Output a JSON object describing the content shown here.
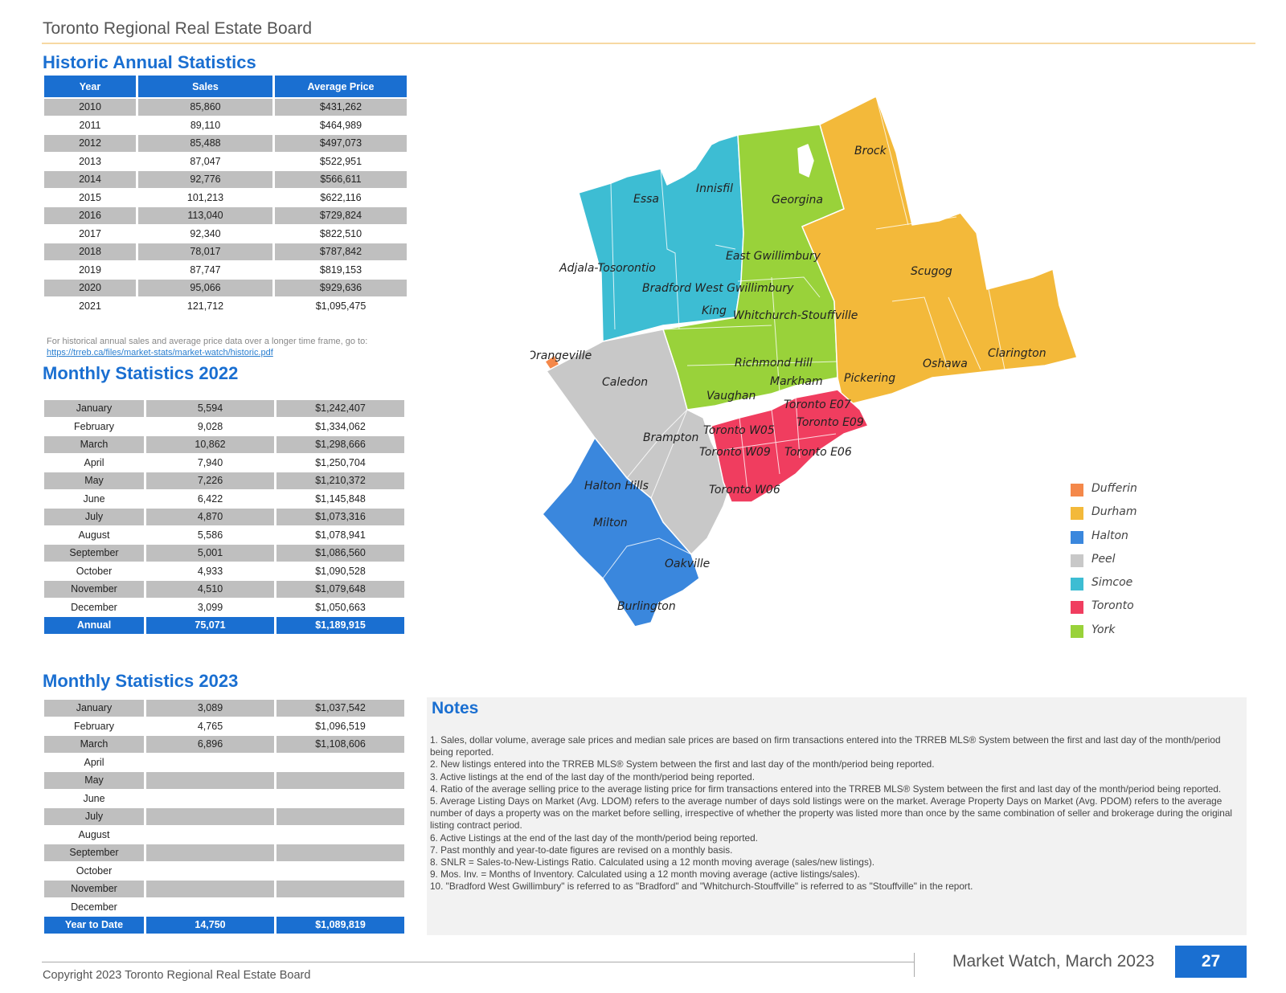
{
  "header": {
    "org_title": "Toronto Regional Real Estate Board"
  },
  "historic": {
    "title": "Historic Annual Statistics",
    "columns": [
      "Year",
      "Sales",
      "Average Price"
    ],
    "rows": [
      [
        "2010",
        "85,860",
        "$431,262"
      ],
      [
        "2011",
        "89,110",
        "$464,989"
      ],
      [
        "2012",
        "85,488",
        "$497,073"
      ],
      [
        "2013",
        "87,047",
        "$522,951"
      ],
      [
        "2014",
        "92,776",
        "$566,611"
      ],
      [
        "2015",
        "101,213",
        "$622,116"
      ],
      [
        "2016",
        "113,040",
        "$729,824"
      ],
      [
        "2017",
        "92,340",
        "$822,510"
      ],
      [
        "2018",
        "78,017",
        "$787,842"
      ],
      [
        "2019",
        "87,747",
        "$819,153"
      ],
      [
        "2020",
        "95,066",
        "$929,636"
      ],
      [
        "2021",
        "121,712",
        "$1,095,475"
      ]
    ],
    "note": "For historical annual sales and average price data over a longer time frame, go to:",
    "link": "https://trreb.ca/files/market-stats/market-watch/historic.pdf"
  },
  "monthly_2022": {
    "title": "Monthly Statistics 2022",
    "rows": [
      [
        "January",
        "5,594",
        "$1,242,407"
      ],
      [
        "February",
        "9,028",
        "$1,334,062"
      ],
      [
        "March",
        "10,862",
        "$1,298,666"
      ],
      [
        "April",
        "7,940",
        "$1,250,704"
      ],
      [
        "May",
        "7,226",
        "$1,210,372"
      ],
      [
        "June",
        "6,422",
        "$1,145,848"
      ],
      [
        "July",
        "4,870",
        "$1,073,316"
      ],
      [
        "August",
        "5,586",
        "$1,078,941"
      ],
      [
        "September",
        "5,001",
        "$1,086,560"
      ],
      [
        "October",
        "4,933",
        "$1,090,528"
      ],
      [
        "November",
        "4,510",
        "$1,079,648"
      ],
      [
        "December",
        "3,099",
        "$1,050,663"
      ]
    ],
    "total": [
      "Annual",
      "75,071",
      "$1,189,915"
    ]
  },
  "monthly_2023": {
    "title": "Monthly Statistics 2023",
    "rows": [
      [
        "January",
        "3,089",
        "$1,037,542"
      ],
      [
        "February",
        "4,765",
        "$1,096,519"
      ],
      [
        "March",
        "6,896",
        "$1,108,606"
      ],
      [
        "April",
        "",
        ""
      ],
      [
        "May",
        "",
        ""
      ],
      [
        "June",
        "",
        ""
      ],
      [
        "July",
        "",
        ""
      ],
      [
        "August",
        "",
        ""
      ],
      [
        "September",
        "",
        ""
      ],
      [
        "October",
        "",
        ""
      ],
      [
        "November",
        "",
        ""
      ],
      [
        "December",
        "",
        ""
      ]
    ],
    "total": [
      "Year to Date",
      "14,750",
      "$1,089,819"
    ]
  },
  "map": {
    "labels": {
      "brock": "Brock",
      "innisfil": "Innisfil",
      "essa": "Essa",
      "georgina": "Georgina",
      "east_gwillimbury": "East Gwillimbury",
      "adjala": "Adjala-Tosorontio",
      "scugog": "Scugog",
      "bradford": "Bradford West Gwillimbury",
      "king": "King",
      "whitchurch": "Whitchurch-Stouffville",
      "orangeville": "Orangeville",
      "clarington": "Clarington",
      "richmond_hill": "Richmond Hill",
      "oshawa": "Oshawa",
      "caledon": "Caledon",
      "markham": "Markham",
      "pickering": "Pickering",
      "vaughan": "Vaughan",
      "toronto_e07": "Toronto E07",
      "toronto_e09": "Toronto E09",
      "brampton": "Brampton",
      "toronto_w05": "Toronto W05",
      "toronto_w09": "Toronto W09",
      "toronto_e06": "Toronto E06",
      "halton_hills": "Halton Hills",
      "toronto_w06": "Toronto W06",
      "milton": "Milton",
      "oakville": "Oakville",
      "burlington": "Burlington"
    },
    "region_colors": {
      "dufferin": "#f4884a",
      "durham": "#f3b93a",
      "halton": "#3a87dd",
      "peel": "#c8c8c8",
      "simcoe": "#3dbdd3",
      "toronto": "#f03d5f",
      "york": "#99d23a"
    },
    "legend": [
      {
        "label": "Dufferin",
        "color": "#f4884a"
      },
      {
        "label": "Durham",
        "color": "#f3b93a"
      },
      {
        "label": "Halton",
        "color": "#3a87dd"
      },
      {
        "label": "Peel",
        "color": "#c8c8c8"
      },
      {
        "label": "Simcoe",
        "color": "#3dbdd3"
      },
      {
        "label": "Toronto",
        "color": "#f03d5f"
      },
      {
        "label": "York",
        "color": "#99d23a"
      }
    ]
  },
  "notes": {
    "title": "Notes",
    "items": [
      "1. Sales, dollar volume, average sale prices and median sale prices are based on firm transactions entered into the TRREB MLS® System between the first and last day of the month/period being reported.",
      "2. New listings entered into the TRREB MLS® System between the first and last day of the month/period being reported.",
      "3. Active listings at the end of the last day of the month/period being reported.",
      "4. Ratio of the average selling price to the average listing price for firm transactions entered into the TRREB MLS® System between the first and last day of the month/period being reported.",
      "5. Average Listing Days on Market (Avg. LDOM) refers to the average number of days sold listings were on the market. Average Property Days on Market (Avg. PDOM) refers to the average number of days a property was on the market before selling, irrespective of whether the property was listed more than once by the same combination of seller and brokerage during the original listing contract period.",
      "6. Active Listings at the end of the last day of the month/period being reported.",
      "7. Past monthly and year-to-date figures are revised on a monthly basis.",
      "8. SNLR = Sales-to-New-Listings Ratio. Calculated using a 12 month moving average (sales/new listings).",
      "9. Mos. Inv. = Months of Inventory. Calculated using a 12 month moving average (active listings/sales).",
      "10. \"Bradford West Gwillimbury\" is referred to as \"Bradford\" and \"Whitchurch-Stouffville\" is referred to as \"Stouffville\" in the report."
    ]
  },
  "footer": {
    "copyright": "Copyright 2023 Toronto Regional Real Estate Board",
    "publication": "Market Watch, March 2023",
    "page_number": "27"
  }
}
